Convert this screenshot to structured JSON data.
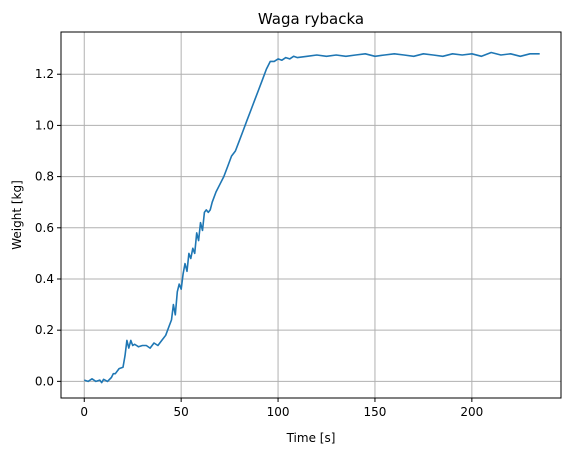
{
  "chart_data": {
    "type": "line",
    "title": "Waga rybacka",
    "xlabel": "Time [s]",
    "ylabel": "Weight [kg]",
    "xlim": [
      -12,
      246
    ],
    "ylim": [
      -0.065,
      1.365
    ],
    "xticks": [
      0,
      50,
      100,
      150,
      200
    ],
    "yticks": [
      0.0,
      0.2,
      0.4,
      0.6,
      0.8,
      1.0,
      1.2
    ],
    "xtick_labels": [
      "0",
      "50",
      "100",
      "150",
      "200"
    ],
    "ytick_labels": [
      "0.0",
      "0.2",
      "0.4",
      "0.6",
      "0.8",
      "1.0",
      "1.2"
    ],
    "grid": true,
    "series": [
      {
        "color": "#1f77b4",
        "x": [
          0,
          2,
          4,
          6,
          8,
          9,
          10,
          12,
          14,
          15,
          16,
          18,
          20,
          21,
          22,
          23,
          24,
          25,
          26,
          27,
          28,
          30,
          32,
          34,
          36,
          38,
          40,
          42,
          44,
          45,
          46,
          47,
          48,
          49,
          50,
          51,
          52,
          53,
          54,
          55,
          56,
          57,
          58,
          59,
          60,
          61,
          62,
          63,
          64,
          65,
          66,
          68,
          70,
          72,
          74,
          76,
          78,
          80,
          82,
          84,
          86,
          88,
          90,
          92,
          94,
          96,
          98,
          100,
          102,
          104,
          106,
          108,
          110,
          115,
          120,
          125,
          130,
          135,
          140,
          145,
          150,
          155,
          160,
          165,
          170,
          175,
          180,
          185,
          190,
          195,
          200,
          205,
          210,
          215,
          220,
          225,
          230,
          235
        ],
        "y": [
          0.005,
          0.0,
          0.01,
          0.0,
          0.005,
          -0.005,
          0.008,
          0.0,
          0.015,
          0.03,
          0.03,
          0.05,
          0.055,
          0.1,
          0.16,
          0.13,
          0.16,
          0.14,
          0.145,
          0.14,
          0.135,
          0.14,
          0.14,
          0.13,
          0.15,
          0.14,
          0.16,
          0.18,
          0.22,
          0.24,
          0.3,
          0.26,
          0.35,
          0.38,
          0.36,
          0.42,
          0.46,
          0.43,
          0.5,
          0.48,
          0.52,
          0.5,
          0.58,
          0.55,
          0.62,
          0.59,
          0.66,
          0.67,
          0.66,
          0.67,
          0.7,
          0.74,
          0.77,
          0.8,
          0.84,
          0.88,
          0.9,
          0.94,
          0.98,
          1.02,
          1.06,
          1.1,
          1.14,
          1.18,
          1.22,
          1.25,
          1.25,
          1.26,
          1.255,
          1.265,
          1.26,
          1.27,
          1.265,
          1.27,
          1.275,
          1.27,
          1.275,
          1.27,
          1.275,
          1.28,
          1.27,
          1.275,
          1.28,
          1.275,
          1.27,
          1.28,
          1.275,
          1.27,
          1.28,
          1.275,
          1.28,
          1.27,
          1.285,
          1.275,
          1.28,
          1.27,
          1.28,
          1.28
        ]
      }
    ]
  }
}
